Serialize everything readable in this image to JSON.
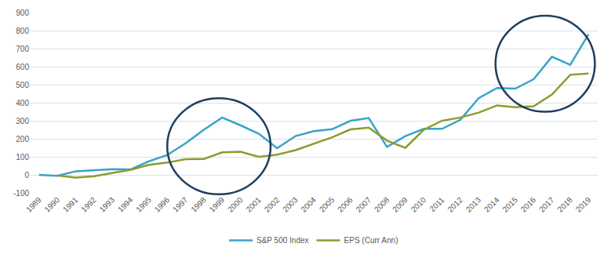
{
  "chart_data": {
    "type": "line",
    "categories": [
      "1989",
      "1990",
      "1991",
      "1992",
      "1993",
      "1994",
      "1995",
      "1996",
      "1997",
      "1998",
      "1999",
      "2000",
      "2001",
      "2002",
      "2003",
      "2004",
      "2005",
      "2006",
      "2007",
      "2008",
      "2009",
      "2010",
      "2011",
      "2012",
      "2013",
      "2014",
      "2015",
      "2016",
      "2017",
      "2018",
      "2019"
    ],
    "series": [
      {
        "name": "S&P 500 Index",
        "color": "#3ba3c8",
        "values": [
          0,
          -5,
          20,
          25,
          32,
          30,
          75,
          110,
          175,
          250,
          318,
          275,
          228,
          148,
          215,
          242,
          253,
          300,
          315,
          155,
          215,
          255,
          255,
          305,
          425,
          482,
          478,
          530,
          655,
          610,
          780
        ]
      },
      {
        "name": "EPS (Curr Ann)",
        "color": "#8c9c2e",
        "values": [
          null,
          -3,
          -15,
          -8,
          10,
          28,
          55,
          68,
          87,
          88,
          125,
          128,
          100,
          112,
          137,
          172,
          208,
          252,
          262,
          190,
          150,
          250,
          300,
          318,
          345,
          385,
          375,
          380,
          445,
          555,
          562
        ]
      }
    ],
    "ylim": [
      -100,
      900
    ],
    "yticks": [
      -100,
      0,
      100,
      200,
      300,
      400,
      500,
      600,
      700,
      800,
      900
    ],
    "grid": true,
    "legend": "bottom"
  }
}
